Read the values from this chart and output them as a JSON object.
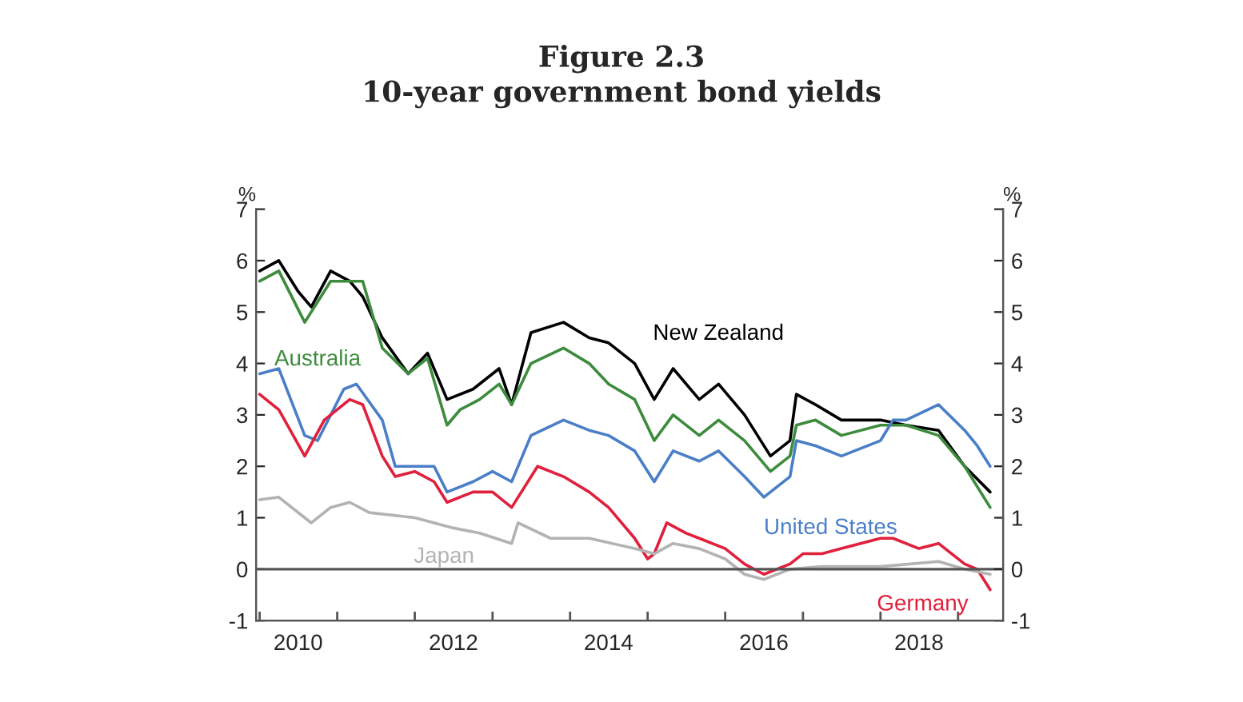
{
  "chart_data": {
    "type": "line",
    "title": "Figure 2.3",
    "subtitle": "10-year government bond yields",
    "ylabel": "%",
    "y2label": "%",
    "xlim": [
      "2009-12-15",
      "2019-08-01"
    ],
    "xticks": [
      {
        "value": "2010-01-01",
        "label": null
      },
      {
        "value": "2010-07-01",
        "label": "2010"
      },
      {
        "value": "2011-01-01",
        "label": null
      },
      {
        "value": "2012-01-01",
        "label": null
      },
      {
        "value": "2012-07-01",
        "label": "2012"
      },
      {
        "value": "2013-01-01",
        "label": null
      },
      {
        "value": "2014-01-01",
        "label": null
      },
      {
        "value": "2014-07-01",
        "label": "2014"
      },
      {
        "value": "2015-01-01",
        "label": null
      },
      {
        "value": "2016-01-01",
        "label": null
      },
      {
        "value": "2016-07-01",
        "label": "2016"
      },
      {
        "value": "2017-01-01",
        "label": null
      },
      {
        "value": "2018-01-01",
        "label": null
      },
      {
        "value": "2018-07-01",
        "label": "2018"
      },
      {
        "value": "2019-01-01",
        "label": null
      }
    ],
    "ylim": [
      -1,
      7
    ],
    "yticks": [
      -1,
      0,
      1,
      2,
      3,
      4,
      5,
      6,
      7
    ],
    "y2lim": [
      -1,
      7
    ],
    "y2ticks": [
      -1,
      0,
      1,
      2,
      3,
      4,
      5,
      6,
      7
    ],
    "grid": false,
    "marker": "none",
    "line_style": "solid",
    "ref_lines": [
      {
        "axis": "y",
        "value": 0,
        "color": "#555555"
      }
    ],
    "series": [
      {
        "name": "New Zealand",
        "color": "#000000",
        "x": [
          "2010-01",
          "2010-04",
          "2010-07",
          "2010-09",
          "2010-12",
          "2011-03",
          "2011-05",
          "2011-08",
          "2011-12",
          "2012-03",
          "2012-06",
          "2012-10",
          "2013-02",
          "2013-04",
          "2013-07",
          "2013-12",
          "2014-04",
          "2014-07",
          "2014-11",
          "2015-02",
          "2015-05",
          "2015-09",
          "2015-12",
          "2016-04",
          "2016-08",
          "2016-11",
          "2016-12",
          "2017-03",
          "2017-07",
          "2018-01",
          "2018-05",
          "2018-10",
          "2019-02",
          "2019-06"
        ],
        "values": [
          5.8,
          6.0,
          5.4,
          5.1,
          5.8,
          5.6,
          5.3,
          4.5,
          3.8,
          4.2,
          3.3,
          3.5,
          3.9,
          3.2,
          4.6,
          4.8,
          4.5,
          4.4,
          4.0,
          3.3,
          3.9,
          3.3,
          3.6,
          3.0,
          2.2,
          2.5,
          3.4,
          3.2,
          2.9,
          2.9,
          2.8,
          2.7,
          2.0,
          1.5
        ]
      },
      {
        "name": "Australia",
        "color": "#3d8b3d",
        "x": [
          "2010-01",
          "2010-04",
          "2010-08",
          "2010-12",
          "2011-03",
          "2011-05",
          "2011-08",
          "2011-12",
          "2012-03",
          "2012-06",
          "2012-08",
          "2012-11",
          "2013-02",
          "2013-04",
          "2013-07",
          "2013-12",
          "2014-04",
          "2014-07",
          "2014-11",
          "2015-02",
          "2015-05",
          "2015-09",
          "2015-12",
          "2016-04",
          "2016-08",
          "2016-11",
          "2016-12",
          "2017-03",
          "2017-07",
          "2018-01",
          "2018-05",
          "2018-10",
          "2019-02",
          "2019-06"
        ],
        "values": [
          5.6,
          5.8,
          4.8,
          5.6,
          5.6,
          5.6,
          4.3,
          3.8,
          4.1,
          2.8,
          3.1,
          3.3,
          3.6,
          3.2,
          4.0,
          4.3,
          4.0,
          3.6,
          3.3,
          2.5,
          3.0,
          2.6,
          2.9,
          2.5,
          1.9,
          2.2,
          2.8,
          2.9,
          2.6,
          2.8,
          2.8,
          2.6,
          2.0,
          1.2
        ]
      },
      {
        "name": "United States",
        "color": "#4a7fc8",
        "x": [
          "2010-01",
          "2010-04",
          "2010-08",
          "2010-10",
          "2011-02",
          "2011-04",
          "2011-08",
          "2011-10",
          "2012-01",
          "2012-04",
          "2012-06",
          "2012-10",
          "2013-01",
          "2013-04",
          "2013-07",
          "2013-12",
          "2014-04",
          "2014-07",
          "2014-11",
          "2015-02",
          "2015-05",
          "2015-09",
          "2015-12",
          "2016-04",
          "2016-07",
          "2016-11",
          "2016-12",
          "2017-03",
          "2017-07",
          "2018-01",
          "2018-03",
          "2018-05",
          "2018-10",
          "2019-02",
          "2019-04",
          "2019-06"
        ],
        "values": [
          3.8,
          3.9,
          2.6,
          2.5,
          3.5,
          3.6,
          2.9,
          2.0,
          2.0,
          2.0,
          1.5,
          1.7,
          1.9,
          1.7,
          2.6,
          2.9,
          2.7,
          2.6,
          2.3,
          1.7,
          2.3,
          2.1,
          2.3,
          1.8,
          1.4,
          1.8,
          2.5,
          2.4,
          2.2,
          2.5,
          2.9,
          2.9,
          3.2,
          2.7,
          2.4,
          2.0
        ]
      },
      {
        "name": "Germany",
        "color": "#e0203c",
        "x": [
          "2010-01",
          "2010-04",
          "2010-08",
          "2010-11",
          "2011-03",
          "2011-05",
          "2011-08",
          "2011-10",
          "2012-01",
          "2012-04",
          "2012-06",
          "2012-10",
          "2013-01",
          "2013-04",
          "2013-08",
          "2013-12",
          "2014-04",
          "2014-07",
          "2014-11",
          "2015-01",
          "2015-02",
          "2015-04",
          "2015-07",
          "2015-09",
          "2016-01",
          "2016-04",
          "2016-07",
          "2016-11",
          "2017-01",
          "2017-04",
          "2017-07",
          "2018-01",
          "2018-03",
          "2018-07",
          "2018-10",
          "2019-02",
          "2019-04",
          "2019-06"
        ],
        "values": [
          3.4,
          3.1,
          2.2,
          2.9,
          3.3,
          3.2,
          2.2,
          1.8,
          1.9,
          1.7,
          1.3,
          1.5,
          1.5,
          1.2,
          2.0,
          1.8,
          1.5,
          1.2,
          0.6,
          0.2,
          0.3,
          0.9,
          0.7,
          0.6,
          0.4,
          0.1,
          -0.1,
          0.1,
          0.3,
          0.3,
          0.4,
          0.6,
          0.6,
          0.4,
          0.5,
          0.1,
          0.0,
          -0.4
        ]
      },
      {
        "name": "Japan",
        "color": "#b3b3b3",
        "x": [
          "2010-01",
          "2010-04",
          "2010-08",
          "2010-09",
          "2010-12",
          "2011-03",
          "2011-06",
          "2012-01",
          "2012-07",
          "2012-11",
          "2013-04",
          "2013-05",
          "2013-10",
          "2014-04",
          "2014-11",
          "2015-02",
          "2015-05",
          "2015-09",
          "2016-01",
          "2016-04",
          "2016-07",
          "2016-11",
          "2017-04",
          "2017-07",
          "2018-01",
          "2018-10",
          "2019-02",
          "2019-06"
        ],
        "values": [
          1.35,
          1.4,
          1.0,
          0.9,
          1.2,
          1.3,
          1.1,
          1.0,
          0.8,
          0.7,
          0.5,
          0.9,
          0.6,
          0.6,
          0.4,
          0.3,
          0.5,
          0.4,
          0.2,
          -0.1,
          -0.2,
          0.0,
          0.05,
          0.05,
          0.05,
          0.15,
          0.0,
          -0.1
        ]
      }
    ]
  }
}
